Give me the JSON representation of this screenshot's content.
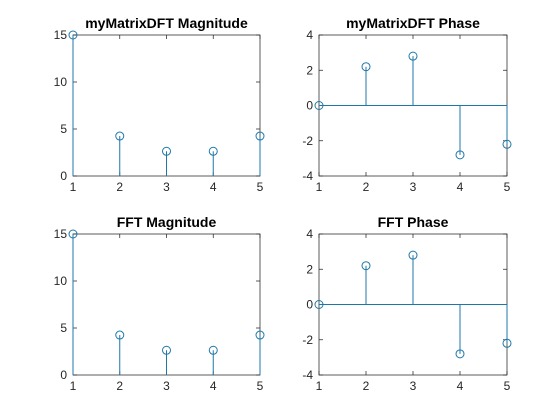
{
  "colors": {
    "stem": "#1f77a8",
    "axis": "#262626",
    "background": "#ffffff"
  },
  "chart_data": [
    {
      "type": "stem",
      "title": "myMatrixDFT Magnitude",
      "x": [
        1,
        2,
        3,
        4,
        5
      ],
      "y": [
        15,
        4.25,
        2.63,
        2.63,
        4.25
      ],
      "xlim": [
        1,
        5
      ],
      "ylim": [
        0,
        15
      ],
      "xticks": [
        1,
        2,
        3,
        4,
        5
      ],
      "yticks": [
        0,
        5,
        10,
        15
      ],
      "grid": false
    },
    {
      "type": "stem",
      "title": "myMatrixDFT Phase",
      "x": [
        1,
        2,
        3,
        4,
        5
      ],
      "y": [
        0,
        2.2,
        2.8,
        -2.8,
        -2.2
      ],
      "xlim": [
        1,
        5
      ],
      "ylim": [
        -4,
        4
      ],
      "xticks": [
        1,
        2,
        3,
        4,
        5
      ],
      "yticks": [
        -4,
        -2,
        0,
        2,
        4
      ],
      "grid": false
    },
    {
      "type": "stem",
      "title": "FFT Magnitude",
      "x": [
        1,
        2,
        3,
        4,
        5
      ],
      "y": [
        15,
        4.25,
        2.63,
        2.63,
        4.25
      ],
      "xlim": [
        1,
        5
      ],
      "ylim": [
        0,
        15
      ],
      "xticks": [
        1,
        2,
        3,
        4,
        5
      ],
      "yticks": [
        0,
        5,
        10,
        15
      ],
      "grid": false
    },
    {
      "type": "stem",
      "title": "FFT Phase",
      "x": [
        1,
        2,
        3,
        4,
        5
      ],
      "y": [
        0,
        2.2,
        2.8,
        -2.8,
        -2.2
      ],
      "xlim": [
        1,
        5
      ],
      "ylim": [
        -4,
        4
      ],
      "xticks": [
        1,
        2,
        3,
        4,
        5
      ],
      "yticks": [
        -4,
        -2,
        0,
        2,
        4
      ],
      "grid": false
    }
  ]
}
